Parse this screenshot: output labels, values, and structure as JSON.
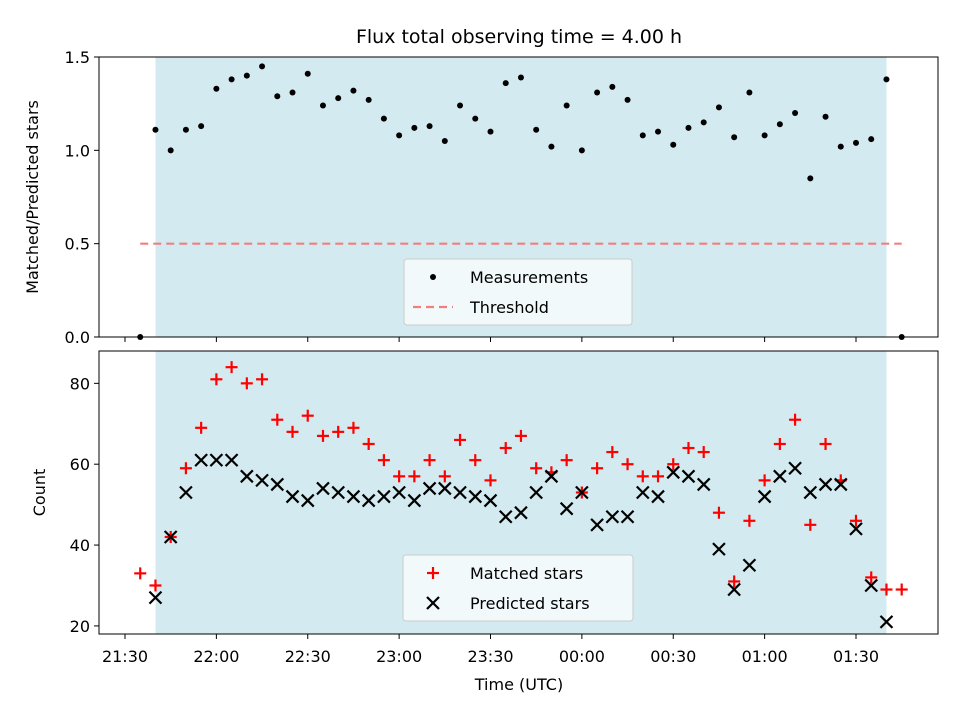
{
  "chart_data": {
    "title": "Flux total observing time = 4.00 h",
    "x_tick_labels": [
      "21:30",
      "22:00",
      "22:30",
      "23:00",
      "23:30",
      "00:00",
      "00:30",
      "01:00",
      "01:30"
    ],
    "xlabel": "Time (UTC)",
    "shaded_interval": [
      "21:40",
      "01:40"
    ],
    "colors": {
      "shade": "#d3eaf0",
      "threshold": "#f08080",
      "matched": "#ff0000",
      "predicted": "#000000",
      "measurement": "#000000"
    },
    "panels": [
      {
        "type": "scatter",
        "ylabel": "Matched/Predicted stars",
        "ylim": [
          0.0,
          1.5
        ],
        "y_ticks": [
          "0.0",
          "0.5",
          "1.0",
          "1.5"
        ],
        "threshold": 0.5,
        "legend_location": "lower center",
        "series": [
          {
            "name": "Measurements",
            "x": [
              "21:35",
              "21:40",
              "21:45",
              "21:50",
              "21:55",
              "22:00",
              "22:05",
              "22:10",
              "22:15",
              "22:20",
              "22:25",
              "22:30",
              "22:35",
              "22:40",
              "22:45",
              "22:50",
              "22:55",
              "23:00",
              "23:05",
              "23:10",
              "23:15",
              "23:20",
              "23:25",
              "23:30",
              "23:35",
              "23:40",
              "23:45",
              "23:50",
              "23:55",
              "00:00",
              "00:05",
              "00:10",
              "00:15",
              "00:20",
              "00:25",
              "00:30",
              "00:35",
              "00:40",
              "00:45",
              "00:50",
              "00:55",
              "01:00",
              "01:05",
              "01:10",
              "01:15",
              "01:20",
              "01:25",
              "01:30",
              "01:35",
              "01:40",
              "01:45"
            ],
            "y": [
              0.0,
              1.11,
              1.0,
              1.11,
              1.13,
              1.33,
              1.38,
              1.4,
              1.45,
              1.29,
              1.31,
              1.41,
              1.24,
              1.28,
              1.32,
              1.27,
              1.17,
              1.08,
              1.12,
              1.13,
              1.05,
              1.24,
              1.17,
              1.1,
              1.36,
              1.39,
              1.11,
              1.02,
              1.24,
              1.0,
              1.31,
              1.34,
              1.27,
              1.08,
              1.1,
              1.03,
              1.12,
              1.15,
              1.23,
              1.07,
              1.31,
              1.08,
              1.14,
              1.2,
              0.85,
              1.18,
              1.02,
              1.04,
              1.06,
              1.38,
              0.0
            ]
          },
          {
            "name": "Threshold",
            "x_range": [
              "21:35",
              "01:45"
            ],
            "y": 0.5
          }
        ]
      },
      {
        "type": "scatter",
        "ylabel": "Count",
        "ylim": [
          18,
          88
        ],
        "y_ticks": [
          "20",
          "40",
          "60",
          "80"
        ],
        "legend_location": "lower center",
        "series": [
          {
            "name": "Matched stars",
            "x": [
              "21:35",
              "21:40",
              "21:45",
              "21:50",
              "21:55",
              "22:00",
              "22:05",
              "22:10",
              "22:15",
              "22:20",
              "22:25",
              "22:30",
              "22:35",
              "22:40",
              "22:45",
              "22:50",
              "22:55",
              "23:00",
              "23:05",
              "23:10",
              "23:15",
              "23:20",
              "23:25",
              "23:30",
              "23:35",
              "23:40",
              "23:45",
              "23:50",
              "23:55",
              "00:00",
              "00:05",
              "00:10",
              "00:15",
              "00:20",
              "00:25",
              "00:30",
              "00:35",
              "00:40",
              "00:45",
              "00:50",
              "00:55",
              "01:00",
              "01:05",
              "01:10",
              "01:15",
              "01:20",
              "01:25",
              "01:30",
              "01:35",
              "01:40",
              "01:45"
            ],
            "y": [
              33,
              30,
              42,
              59,
              69,
              81,
              84,
              80,
              81,
              71,
              68,
              72,
              67,
              68,
              69,
              65,
              61,
              57,
              57,
              61,
              57,
              66,
              61,
              56,
              64,
              67,
              59,
              58,
              61,
              53,
              59,
              63,
              60,
              57,
              57,
              60,
              64,
              63,
              48,
              31,
              46,
              56,
              65,
              71,
              45,
              65,
              56,
              46,
              32,
              29,
              29
            ]
          },
          {
            "name": "Predicted stars",
            "x": [
              "21:40",
              "21:45",
              "21:50",
              "21:55",
              "22:00",
              "22:05",
              "22:10",
              "22:15",
              "22:20",
              "22:25",
              "22:30",
              "22:35",
              "22:40",
              "22:45",
              "22:50",
              "22:55",
              "23:00",
              "23:05",
              "23:10",
              "23:15",
              "23:20",
              "23:25",
              "23:30",
              "23:35",
              "23:40",
              "23:45",
              "23:50",
              "23:55",
              "00:00",
              "00:05",
              "00:10",
              "00:15",
              "00:20",
              "00:25",
              "00:30",
              "00:35",
              "00:40",
              "00:45",
              "00:50",
              "00:55",
              "01:00",
              "01:05",
              "01:10",
              "01:15",
              "01:20",
              "01:25",
              "01:30",
              "01:35",
              "01:40"
            ],
            "y": [
              27,
              42,
              53,
              61,
              61,
              61,
              57,
              56,
              55,
              52,
              51,
              54,
              53,
              52,
              51,
              52,
              53,
              51,
              54,
              54,
              53,
              52,
              51,
              47,
              48,
              53,
              57,
              49,
              53,
              45,
              47,
              47,
              53,
              52,
              58,
              57,
              55,
              39,
              29,
              35,
              52,
              57,
              59,
              53,
              55,
              55,
              44,
              30,
              21
            ]
          }
        ]
      }
    ]
  }
}
